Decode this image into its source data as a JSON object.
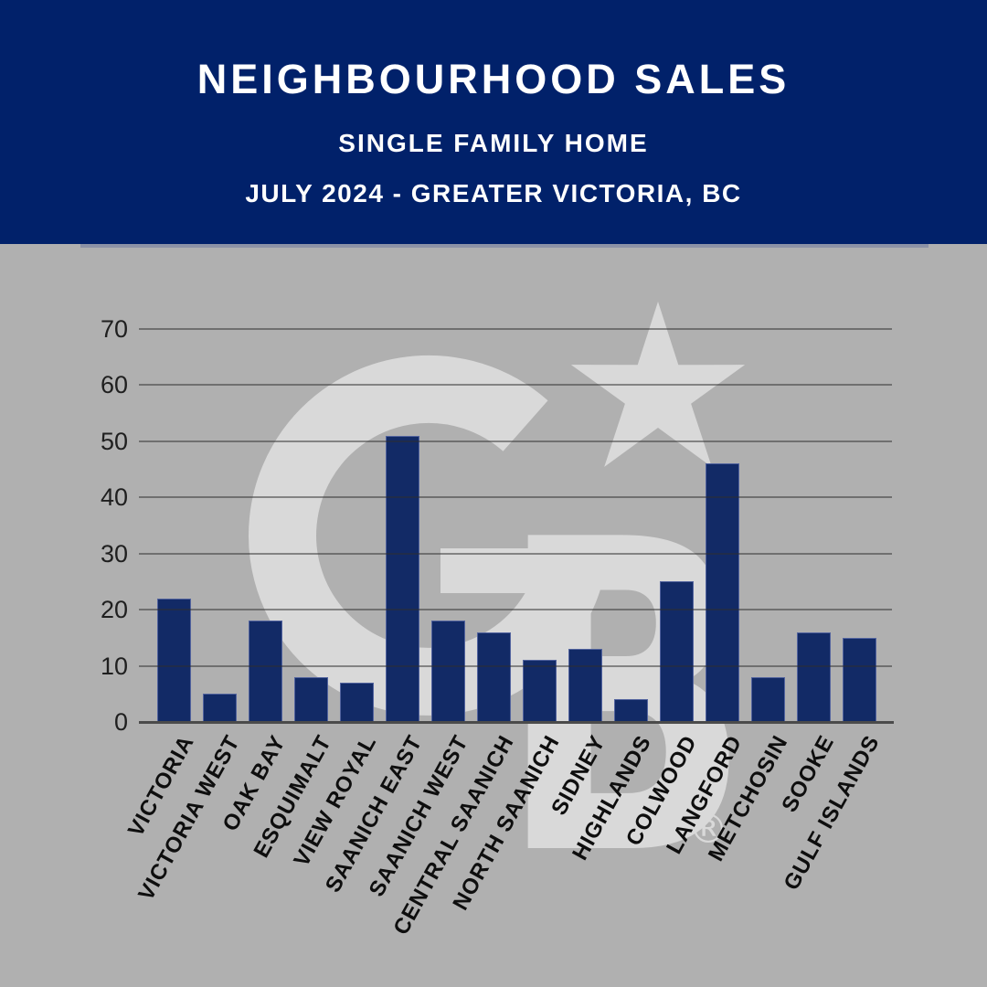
{
  "header": {
    "title": "NEIGHBOURHOOD SALES",
    "subtitle1": "SINGLE FAMILY HOME",
    "subtitle2": "JULY 2024 - GREATER VICTORIA, BC"
  },
  "watermark": {
    "brand": "coldwell-banker-cb-star-monogram",
    "registered_mark": "®"
  },
  "colors": {
    "header_bg": "#01216a",
    "canvas_bg": "#b0b0b0",
    "bar_fill": "#122a66",
    "bar_edge": "#5e6da8",
    "gridline": "#4b4b4b",
    "watermark": "#e4e4e4",
    "header_text": "#ffffff",
    "tick_text": "#1f1f1f",
    "xlabel_text": "#0e0e0e"
  },
  "chart_data": {
    "type": "bar",
    "title": "NEIGHBOURHOOD SALES",
    "subtitle": "SINGLE FAMILY HOME — JULY 2024 - GREATER VICTORIA, BC",
    "categories": [
      "VICTORIA",
      "VICTORIA WEST",
      "OAK BAY",
      "ESQUIMALT",
      "VIEW ROYAL",
      "SAANICH EAST",
      "SAANICH WEST",
      "CENTRAL SAANICH",
      "NORTH SAANICH",
      "SIDNEY",
      "HIGHLANDS",
      "COLWOOD",
      "LANGFORD",
      "METCHOSIN",
      "SOOKE",
      "GULF ISLANDS"
    ],
    "values": [
      22,
      5,
      18,
      8,
      7,
      51,
      18,
      16,
      11,
      13,
      4,
      25,
      46,
      8,
      16,
      15
    ],
    "xlabel": "",
    "ylabel": "",
    "ylim": [
      0,
      70
    ],
    "yticks": [
      0,
      10,
      20,
      30,
      40,
      50,
      60,
      70
    ],
    "grid": true,
    "legend": false,
    "bar_color": "#122a66",
    "gridlines_over_bars": true
  }
}
